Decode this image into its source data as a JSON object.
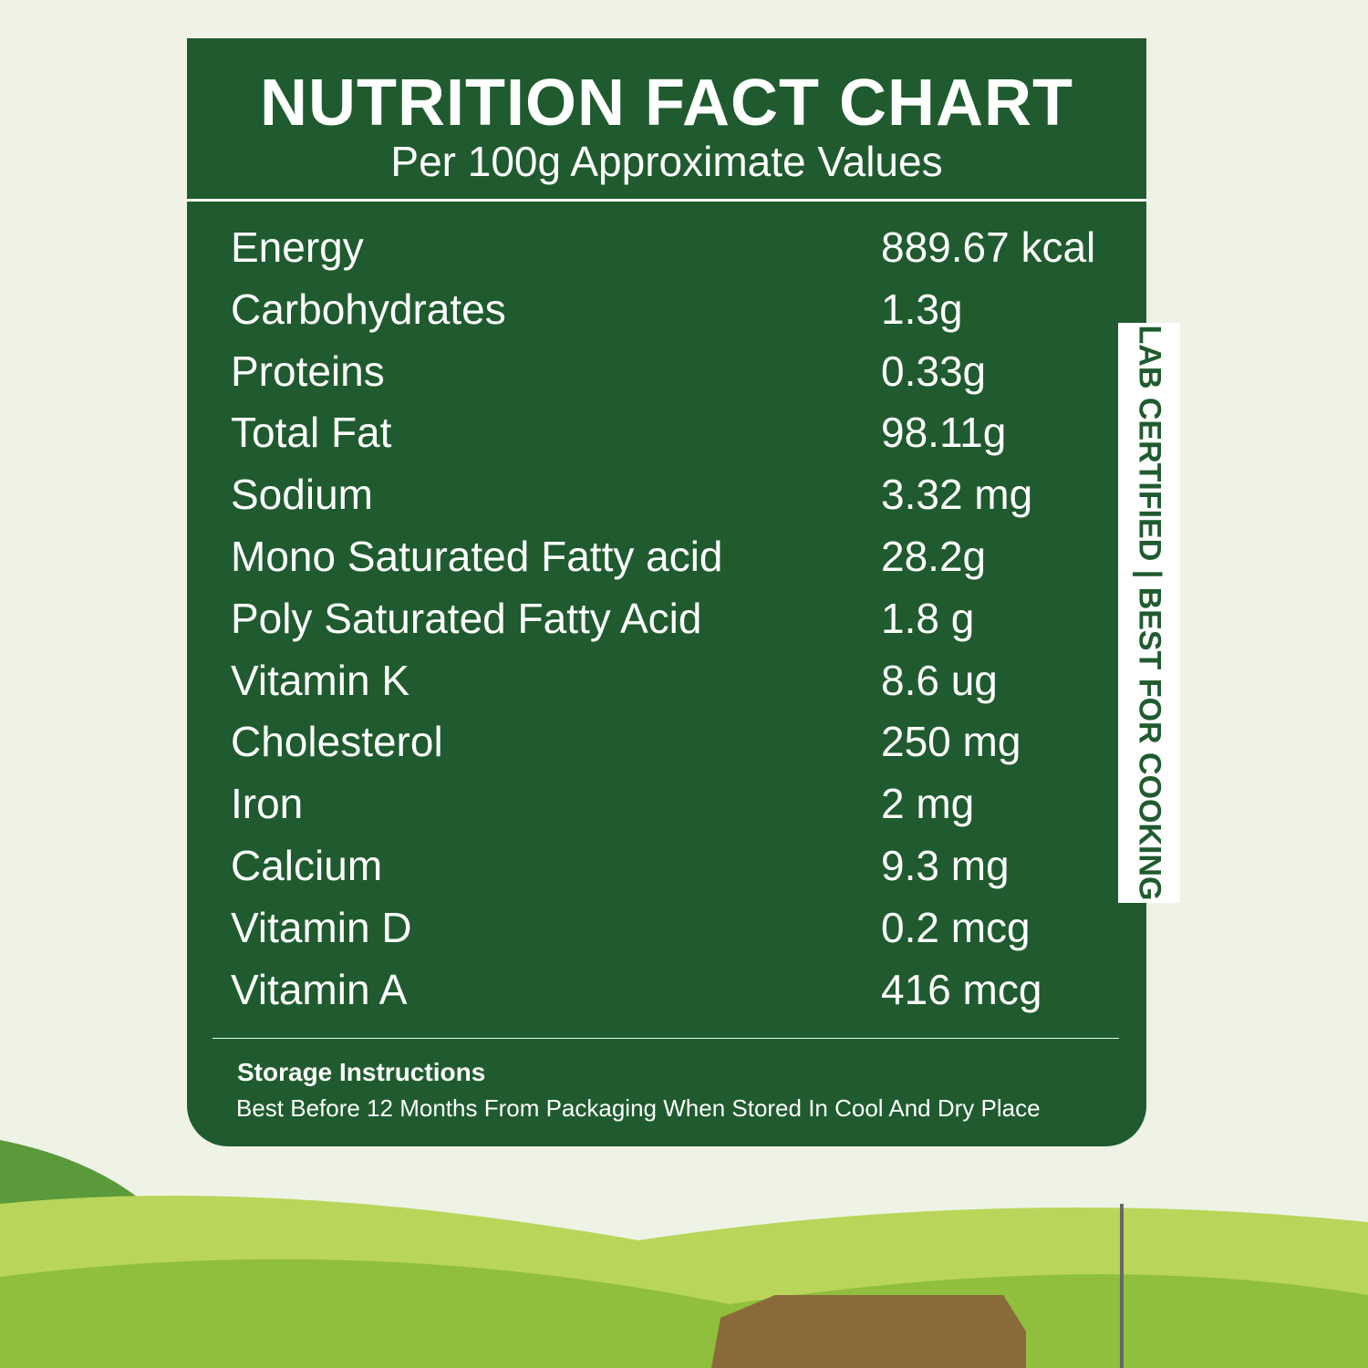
{
  "header": {
    "title": "NUTRITION FACT CHART",
    "subtitle": "Per 100g Approximate Values"
  },
  "table": {
    "rows": [
      [
        "Energy",
        "889.67 kcal"
      ],
      [
        "Carbohydrates",
        "1.3g"
      ],
      [
        "Proteins",
        "0.33g"
      ],
      [
        "Total Fat",
        "98.11g"
      ],
      [
        "Sodium",
        "3.32 mg"
      ],
      [
        "Mono Saturated Fatty acid",
        "28.2g"
      ],
      [
        "Poly Saturated Fatty Acid",
        "1.8 g"
      ],
      [
        "Vitamin K",
        "8.6 ug"
      ],
      [
        "Cholesterol",
        "250 mg"
      ],
      [
        "Iron",
        "2 mg"
      ],
      [
        "Calcium",
        "9.3 mg"
      ],
      [
        "Vitamin D",
        "0.2 mcg"
      ],
      [
        "Vitamin A",
        "416 mcg"
      ]
    ]
  },
  "storage": {
    "heading": "Storage Instructions",
    "text": "Best Before 12 Months From Packaging When Stored In Cool And Dry Place"
  },
  "badge": "LAB CERTIFIED | BEST FOR COOKING"
}
